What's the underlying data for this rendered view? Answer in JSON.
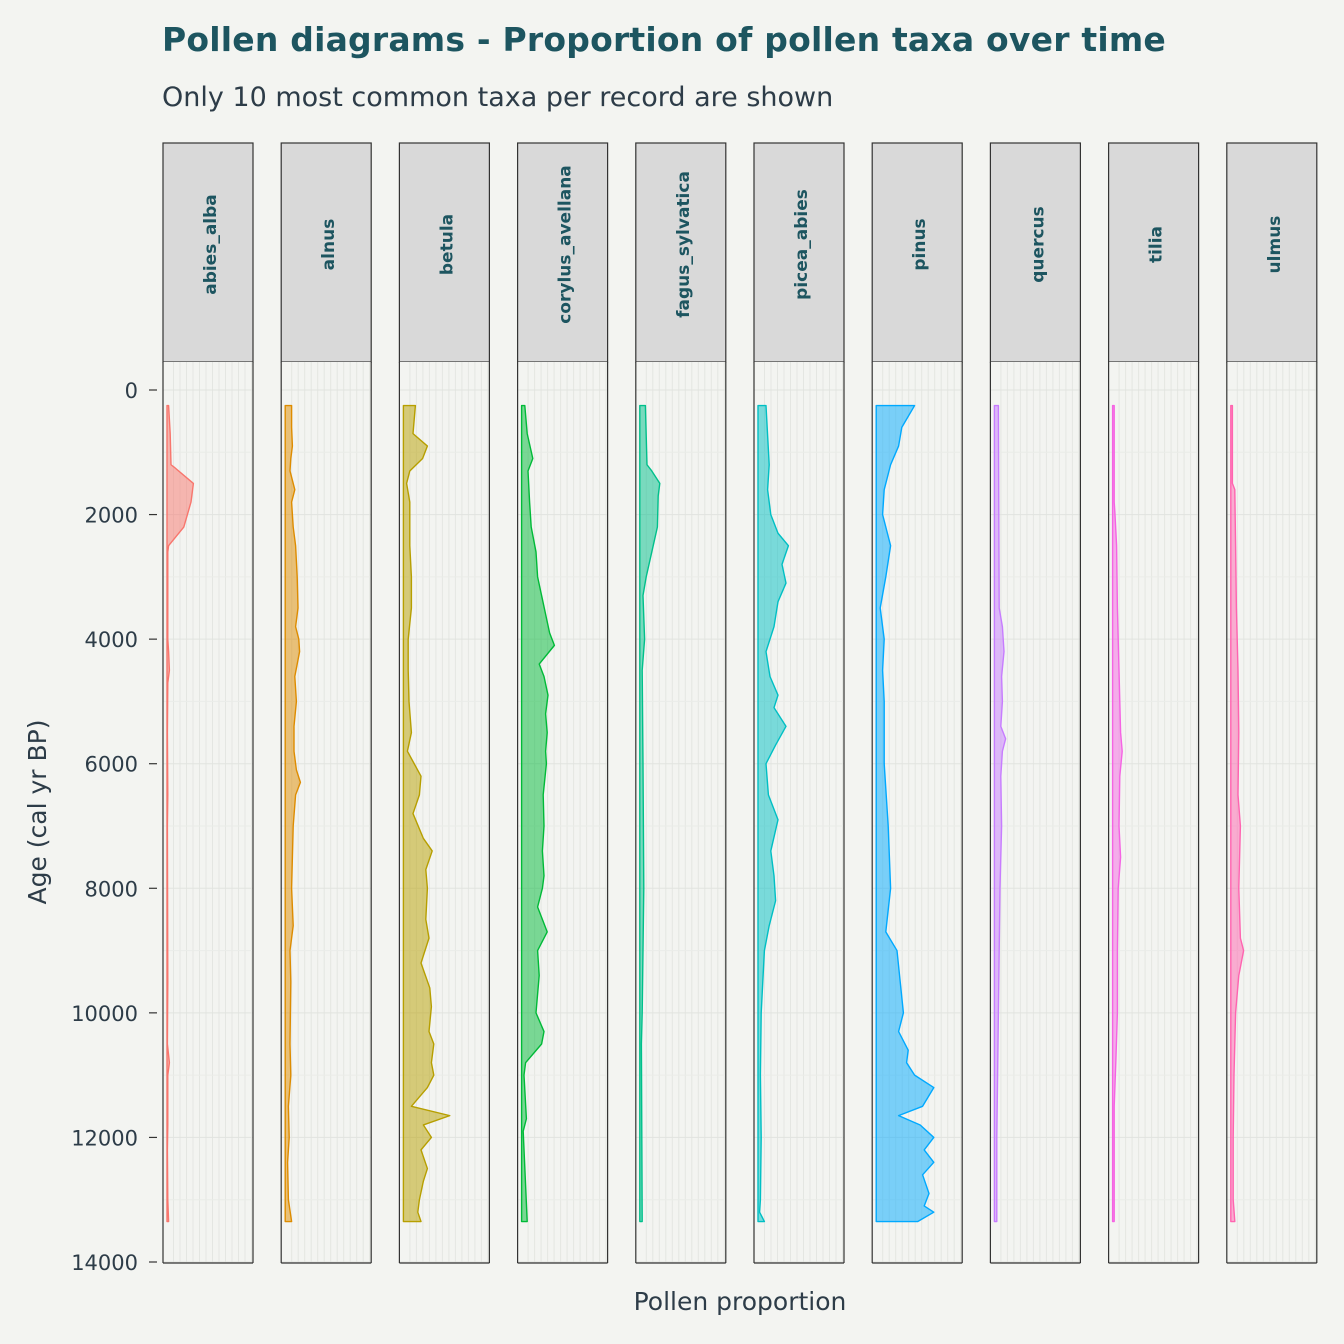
{
  "chart_data": {
    "type": "area",
    "title": "Pollen diagrams - Proportion of pollen taxa over time",
    "subtitle": "Only 10 most common taxa per record are shown",
    "xlabel": "Pollen proportion",
    "ylabel": "Age (cal yr BP)",
    "ylim": [
      0,
      14000
    ],
    "y_reversed": true,
    "y_ticks": [
      "0",
      "2000",
      "4000",
      "6000",
      "8000",
      "10000",
      "12000",
      "14000"
    ],
    "x_range": [
      0,
      1
    ],
    "grid": true,
    "series": [
      {
        "name": "abies_alba",
        "color": "#f8766d",
        "points": [
          [
            250,
            0.02
          ],
          [
            700,
            0.04
          ],
          [
            1200,
            0.05
          ],
          [
            1250,
            0.1
          ],
          [
            1500,
            0.33
          ],
          [
            1800,
            0.3
          ],
          [
            2200,
            0.21
          ],
          [
            2500,
            0.02
          ],
          [
            2600,
            0.01
          ],
          [
            4000,
            0.01
          ],
          [
            4200,
            0.02
          ],
          [
            4500,
            0.03
          ],
          [
            4700,
            0.01
          ],
          [
            5500,
            0.005
          ],
          [
            6500,
            0.01
          ],
          [
            7000,
            0.005
          ],
          [
            9500,
            0.01
          ],
          [
            10500,
            0.005
          ],
          [
            10800,
            0.03
          ],
          [
            11000,
            0.01
          ],
          [
            11800,
            0.01
          ],
          [
            12200,
            0.005
          ],
          [
            13000,
            0.01
          ],
          [
            13350,
            0.02
          ]
        ]
      },
      {
        "name": "alnus",
        "color": "#de8c00",
        "points": [
          [
            250,
            0.08
          ],
          [
            600,
            0.08
          ],
          [
            900,
            0.09
          ],
          [
            1100,
            0.07
          ],
          [
            1300,
            0.06
          ],
          [
            1600,
            0.12
          ],
          [
            1800,
            0.08
          ],
          [
            2200,
            0.1
          ],
          [
            2500,
            0.13
          ],
          [
            3000,
            0.15
          ],
          [
            3500,
            0.16
          ],
          [
            3800,
            0.13
          ],
          [
            4000,
            0.17
          ],
          [
            4200,
            0.18
          ],
          [
            4600,
            0.12
          ],
          [
            5000,
            0.14
          ],
          [
            5400,
            0.11
          ],
          [
            5800,
            0.11
          ],
          [
            6100,
            0.14
          ],
          [
            6300,
            0.19
          ],
          [
            6500,
            0.13
          ],
          [
            7000,
            0.1
          ],
          [
            8000,
            0.08
          ],
          [
            8600,
            0.1
          ],
          [
            9000,
            0.06
          ],
          [
            9500,
            0.07
          ],
          [
            10500,
            0.06
          ],
          [
            11000,
            0.07
          ],
          [
            11500,
            0.04
          ],
          [
            12000,
            0.05
          ],
          [
            12400,
            0.03
          ],
          [
            13000,
            0.04
          ],
          [
            13350,
            0.08
          ]
        ]
      },
      {
        "name": "betula",
        "color": "#b79f00",
        "points": [
          [
            250,
            0.15
          ],
          [
            700,
            0.12
          ],
          [
            900,
            0.3
          ],
          [
            1100,
            0.24
          ],
          [
            1300,
            0.08
          ],
          [
            1500,
            0.04
          ],
          [
            1800,
            0.08
          ],
          [
            2500,
            0.08
          ],
          [
            3000,
            0.1
          ],
          [
            3500,
            0.1
          ],
          [
            4000,
            0.06
          ],
          [
            4500,
            0.06
          ],
          [
            5000,
            0.07
          ],
          [
            5500,
            0.1
          ],
          [
            5800,
            0.05
          ],
          [
            6200,
            0.22
          ],
          [
            6500,
            0.2
          ],
          [
            6800,
            0.12
          ],
          [
            7200,
            0.25
          ],
          [
            7400,
            0.36
          ],
          [
            7700,
            0.28
          ],
          [
            8000,
            0.3
          ],
          [
            8500,
            0.28
          ],
          [
            8800,
            0.32
          ],
          [
            9200,
            0.22
          ],
          [
            9600,
            0.33
          ],
          [
            9900,
            0.35
          ],
          [
            10300,
            0.32
          ],
          [
            10500,
            0.38
          ],
          [
            10800,
            0.35
          ],
          [
            11000,
            0.38
          ],
          [
            11200,
            0.3
          ],
          [
            11500,
            0.1
          ],
          [
            11650,
            0.58
          ],
          [
            11800,
            0.25
          ],
          [
            12000,
            0.35
          ],
          [
            12200,
            0.22
          ],
          [
            12500,
            0.3
          ],
          [
            12700,
            0.25
          ],
          [
            13000,
            0.2
          ],
          [
            13200,
            0.18
          ],
          [
            13350,
            0.22
          ]
        ]
      },
      {
        "name": "corylus_avellana",
        "color": "#00ba38",
        "points": [
          [
            250,
            0.04
          ],
          [
            700,
            0.07
          ],
          [
            1100,
            0.14
          ],
          [
            1300,
            0.08
          ],
          [
            1800,
            0.1
          ],
          [
            2200,
            0.12
          ],
          [
            2600,
            0.18
          ],
          [
            3000,
            0.2
          ],
          [
            3300,
            0.25
          ],
          [
            3600,
            0.3
          ],
          [
            3900,
            0.35
          ],
          [
            4100,
            0.41
          ],
          [
            4400,
            0.22
          ],
          [
            4600,
            0.28
          ],
          [
            4900,
            0.33
          ],
          [
            5200,
            0.3
          ],
          [
            5500,
            0.32
          ],
          [
            5800,
            0.3
          ],
          [
            6000,
            0.31
          ],
          [
            6500,
            0.27
          ],
          [
            7000,
            0.28
          ],
          [
            7400,
            0.26
          ],
          [
            7800,
            0.28
          ],
          [
            8000,
            0.26
          ],
          [
            8300,
            0.2
          ],
          [
            8700,
            0.32
          ],
          [
            9000,
            0.2
          ],
          [
            9400,
            0.22
          ],
          [
            10000,
            0.18
          ],
          [
            10300,
            0.28
          ],
          [
            10500,
            0.25
          ],
          [
            10800,
            0.05
          ],
          [
            11000,
            0.03
          ],
          [
            11700,
            0.06
          ],
          [
            11900,
            0.02
          ],
          [
            13350,
            0.07
          ]
        ]
      },
      {
        "name": "fagus_sylvatica",
        "color": "#00c08b",
        "points": [
          [
            250,
            0.07
          ],
          [
            1200,
            0.09
          ],
          [
            1300,
            0.15
          ],
          [
            1500,
            0.25
          ],
          [
            1700,
            0.23
          ],
          [
            2200,
            0.22
          ],
          [
            2600,
            0.15
          ],
          [
            3000,
            0.08
          ],
          [
            3300,
            0.04
          ],
          [
            4000,
            0.06
          ],
          [
            4500,
            0.03
          ],
          [
            6000,
            0.04
          ],
          [
            8000,
            0.05
          ],
          [
            10000,
            0.03
          ],
          [
            10500,
            0.02
          ],
          [
            13350,
            0.03
          ]
        ]
      },
      {
        "name": "picea_abies",
        "color": "#00bfc4",
        "points": [
          [
            250,
            0.1
          ],
          [
            1200,
            0.14
          ],
          [
            1600,
            0.12
          ],
          [
            2000,
            0.16
          ],
          [
            2300,
            0.25
          ],
          [
            2500,
            0.38
          ],
          [
            2800,
            0.3
          ],
          [
            3100,
            0.35
          ],
          [
            3400,
            0.25
          ],
          [
            3800,
            0.2
          ],
          [
            4200,
            0.1
          ],
          [
            4600,
            0.15
          ],
          [
            4900,
            0.25
          ],
          [
            5100,
            0.2
          ],
          [
            5400,
            0.35
          ],
          [
            5700,
            0.22
          ],
          [
            6000,
            0.1
          ],
          [
            6500,
            0.13
          ],
          [
            6900,
            0.25
          ],
          [
            7400,
            0.16
          ],
          [
            7800,
            0.2
          ],
          [
            8200,
            0.22
          ],
          [
            8600,
            0.14
          ],
          [
            9000,
            0.08
          ],
          [
            10000,
            0.04
          ],
          [
            11000,
            0.03
          ],
          [
            12000,
            0.04
          ],
          [
            13000,
            0.03
          ],
          [
            13200,
            0.02
          ],
          [
            13350,
            0.08
          ]
        ]
      },
      {
        "name": "pinus",
        "color": "#00a9ff",
        "points": [
          [
            250,
            0.48
          ],
          [
            600,
            0.32
          ],
          [
            900,
            0.28
          ],
          [
            1200,
            0.18
          ],
          [
            1600,
            0.1
          ],
          [
            2000,
            0.08
          ],
          [
            2500,
            0.18
          ],
          [
            3000,
            0.12
          ],
          [
            3500,
            0.05
          ],
          [
            4000,
            0.1
          ],
          [
            4500,
            0.08
          ],
          [
            5000,
            0.1
          ],
          [
            6000,
            0.1
          ],
          [
            7000,
            0.15
          ],
          [
            8000,
            0.18
          ],
          [
            8700,
            0.12
          ],
          [
            9000,
            0.26
          ],
          [
            9500,
            0.3
          ],
          [
            10000,
            0.34
          ],
          [
            10300,
            0.28
          ],
          [
            10600,
            0.4
          ],
          [
            10800,
            0.38
          ],
          [
            11000,
            0.48
          ],
          [
            11200,
            0.72
          ],
          [
            11500,
            0.58
          ],
          [
            11650,
            0.28
          ],
          [
            11800,
            0.55
          ],
          [
            12000,
            0.72
          ],
          [
            12200,
            0.6
          ],
          [
            12400,
            0.72
          ],
          [
            12600,
            0.58
          ],
          [
            12900,
            0.66
          ],
          [
            13100,
            0.6
          ],
          [
            13200,
            0.72
          ],
          [
            13350,
            0.52
          ]
        ]
      },
      {
        "name": "quercus",
        "color": "#c77cff",
        "points": [
          [
            250,
            0.05
          ],
          [
            3500,
            0.06
          ],
          [
            3800,
            0.1
          ],
          [
            4200,
            0.12
          ],
          [
            4600,
            0.09
          ],
          [
            5000,
            0.1
          ],
          [
            5400,
            0.08
          ],
          [
            5600,
            0.14
          ],
          [
            5800,
            0.1
          ],
          [
            6200,
            0.08
          ],
          [
            7000,
            0.09
          ],
          [
            8000,
            0.07
          ],
          [
            9000,
            0.06
          ],
          [
            10000,
            0.05
          ],
          [
            11000,
            0.04
          ],
          [
            12000,
            0.03
          ],
          [
            13350,
            0.03
          ]
        ]
      },
      {
        "name": "tilia",
        "color": "#f564e3",
        "points": [
          [
            250,
            0.02
          ],
          [
            1800,
            0.02
          ],
          [
            2000,
            0.03
          ],
          [
            2500,
            0.05
          ],
          [
            3500,
            0.06
          ],
          [
            4500,
            0.08
          ],
          [
            5500,
            0.1
          ],
          [
            5800,
            0.12
          ],
          [
            6200,
            0.09
          ],
          [
            7000,
            0.08
          ],
          [
            7500,
            0.1
          ],
          [
            8000,
            0.07
          ],
          [
            9000,
            0.06
          ],
          [
            10000,
            0.06
          ],
          [
            10800,
            0.04
          ],
          [
            11500,
            0.02
          ],
          [
            13350,
            0.02
          ]
        ]
      },
      {
        "name": "ulmus",
        "color": "#ff64b0",
        "points": [
          [
            250,
            0.02
          ],
          [
            1500,
            0.02
          ],
          [
            1600,
            0.05
          ],
          [
            2500,
            0.06
          ],
          [
            3500,
            0.07
          ],
          [
            4500,
            0.09
          ],
          [
            5500,
            0.1
          ],
          [
            6500,
            0.09
          ],
          [
            7000,
            0.12
          ],
          [
            8000,
            0.1
          ],
          [
            8800,
            0.12
          ],
          [
            9000,
            0.16
          ],
          [
            9400,
            0.1
          ],
          [
            10000,
            0.06
          ],
          [
            10500,
            0.05
          ],
          [
            11000,
            0.04
          ],
          [
            12000,
            0.03
          ],
          [
            13000,
            0.03
          ],
          [
            13350,
            0.05
          ]
        ]
      }
    ]
  }
}
